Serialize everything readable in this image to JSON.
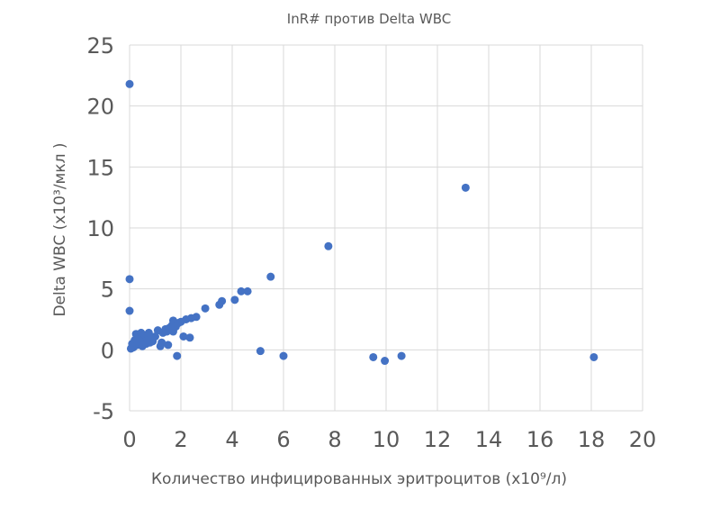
{
  "chart_data": {
    "type": "scatter",
    "title": "InR# против Delta WBC",
    "xlabel": "Количество инфицированных эритроцитов (x10⁹/л)",
    "ylabel": "Delta WBC (x10³/мкл )",
    "xlim": [
      0,
      20
    ],
    "ylim": [
      -5,
      25
    ],
    "x_ticks": [
      "0",
      "2",
      "4",
      "6",
      "8",
      "10",
      "12",
      "14",
      "16",
      "18",
      "20"
    ],
    "y_ticks": [
      "25",
      "20",
      "15",
      "10",
      "5",
      "0",
      "-5"
    ],
    "grid": true,
    "legend": "none",
    "series_color": "#4472c4",
    "points": [
      {
        "x": 0.0,
        "y": 21.8
      },
      {
        "x": 0.0,
        "y": 5.8
      },
      {
        "x": 0.0,
        "y": 3.2
      },
      {
        "x": 0.05,
        "y": 0.1
      },
      {
        "x": 0.1,
        "y": 0.5
      },
      {
        "x": 0.15,
        "y": 0.2
      },
      {
        "x": 0.2,
        "y": 0.8
      },
      {
        "x": 0.25,
        "y": 1.3
      },
      {
        "x": 0.3,
        "y": 0.4
      },
      {
        "x": 0.35,
        "y": 1.0
      },
      {
        "x": 0.4,
        "y": 0.6
      },
      {
        "x": 0.45,
        "y": 1.4
      },
      {
        "x": 0.5,
        "y": 0.3
      },
      {
        "x": 0.55,
        "y": 0.9
      },
      {
        "x": 0.6,
        "y": 1.2
      },
      {
        "x": 0.65,
        "y": 0.5
      },
      {
        "x": 0.7,
        "y": 0.8
      },
      {
        "x": 0.75,
        "y": 1.4
      },
      {
        "x": 0.8,
        "y": 0.6
      },
      {
        "x": 0.85,
        "y": 1.0
      },
      {
        "x": 0.9,
        "y": 0.7
      },
      {
        "x": 1.0,
        "y": 1.1
      },
      {
        "x": 1.1,
        "y": 1.6
      },
      {
        "x": 1.2,
        "y": 0.3
      },
      {
        "x": 1.25,
        "y": 0.6
      },
      {
        "x": 1.3,
        "y": 1.4
      },
      {
        "x": 1.4,
        "y": 1.7
      },
      {
        "x": 1.45,
        "y": 1.5
      },
      {
        "x": 1.5,
        "y": 0.4
      },
      {
        "x": 1.55,
        "y": 1.8
      },
      {
        "x": 1.65,
        "y": 2.0
      },
      {
        "x": 1.7,
        "y": 1.5
      },
      {
        "x": 1.7,
        "y": 2.4
      },
      {
        "x": 1.8,
        "y": 1.9
      },
      {
        "x": 1.85,
        "y": -0.5
      },
      {
        "x": 1.9,
        "y": 2.2
      },
      {
        "x": 2.0,
        "y": 2.3
      },
      {
        "x": 2.1,
        "y": 1.1
      },
      {
        "x": 2.2,
        "y": 2.5
      },
      {
        "x": 2.35,
        "y": 1.0
      },
      {
        "x": 2.4,
        "y": 2.6
      },
      {
        "x": 2.6,
        "y": 2.7
      },
      {
        "x": 2.95,
        "y": 3.4
      },
      {
        "x": 3.5,
        "y": 3.7
      },
      {
        "x": 3.6,
        "y": 4.0
      },
      {
        "x": 4.1,
        "y": 4.1
      },
      {
        "x": 4.35,
        "y": 4.8
      },
      {
        "x": 4.6,
        "y": 4.8
      },
      {
        "x": 5.1,
        "y": -0.1
      },
      {
        "x": 5.5,
        "y": 6.0
      },
      {
        "x": 6.0,
        "y": -0.5
      },
      {
        "x": 7.75,
        "y": 8.5
      },
      {
        "x": 9.5,
        "y": -0.6
      },
      {
        "x": 9.95,
        "y": -0.9
      },
      {
        "x": 10.6,
        "y": -0.5
      },
      {
        "x": 13.1,
        "y": 13.3
      },
      {
        "x": 18.1,
        "y": -0.6
      }
    ]
  }
}
